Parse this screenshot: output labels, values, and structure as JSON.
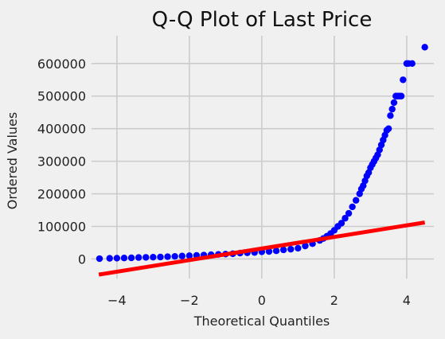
{
  "chart_data": {
    "type": "scatter",
    "title": "Q-Q Plot of Last Price",
    "xlabel": "Theoretical Quantiles",
    "ylabel": "Ordered Values",
    "xlim": [
      -4.7,
      4.75
    ],
    "ylim": [
      -60000,
      685000
    ],
    "x_ticks": [
      -4,
      -2,
      0,
      2,
      4
    ],
    "x_tick_labels": [
      "−4",
      "−2",
      "0",
      "2",
      "4"
    ],
    "y_ticks": [
      0,
      100000,
      200000,
      300000,
      400000,
      500000,
      600000
    ],
    "y_tick_labels": [
      "0",
      "100000",
      "200000",
      "300000",
      "400000",
      "500000",
      "600000"
    ],
    "grid": true,
    "colors": {
      "points": "#0000ff",
      "fit_line": "#ff0000",
      "background": "#f0f0f0",
      "grid": "#cbcbcb"
    },
    "series": [
      {
        "kind": "points",
        "x": [
          -4.48,
          -4.2,
          -4.0,
          -3.8,
          -3.6,
          -3.4,
          -3.2,
          -3.0,
          -2.8,
          -2.6,
          -2.4,
          -2.2,
          -2.0,
          -1.8,
          -1.6,
          -1.4,
          -1.2,
          -1.0,
          -0.8,
          -0.6,
          -0.4,
          -0.2,
          0.0,
          0.2,
          0.4,
          0.6,
          0.8,
          1.0,
          1.2,
          1.4,
          1.6,
          1.7,
          1.8,
          1.9,
          2.0,
          2.1,
          2.2,
          2.3,
          2.4,
          2.5,
          2.6,
          2.7,
          2.75,
          2.8,
          2.85,
          2.9,
          2.95,
          3.0,
          3.05,
          3.1,
          3.15,
          3.2,
          3.25,
          3.3,
          3.35,
          3.4,
          3.45,
          3.5,
          3.55,
          3.6,
          3.65,
          3.7,
          3.75,
          3.8,
          3.85,
          3.9,
          4.0,
          4.05,
          4.15,
          4.5
        ],
        "y": [
          1000,
          2000,
          2500,
          3000,
          3500,
          4500,
          5000,
          5500,
          6000,
          7000,
          8000,
          9000,
          10000,
          11000,
          12000,
          13000,
          14000,
          15000,
          16000,
          18000,
          19000,
          20000,
          22000,
          23000,
          25000,
          28000,
          30000,
          33000,
          40000,
          47000,
          57000,
          63000,
          70000,
          78000,
          88000,
          100000,
          110000,
          125000,
          140000,
          160000,
          180000,
          200000,
          215000,
          225000,
          240000,
          255000,
          265000,
          280000,
          290000,
          300000,
          310000,
          320000,
          335000,
          350000,
          365000,
          380000,
          395000,
          400000,
          440000,
          460000,
          480000,
          500000,
          500000,
          500000,
          500000,
          550000,
          600000,
          600000,
          600000,
          650000
        ]
      },
      {
        "kind": "fit_line",
        "x": [
          -4.5,
          4.5
        ],
        "y": [
          -48000,
          112000
        ]
      }
    ]
  }
}
